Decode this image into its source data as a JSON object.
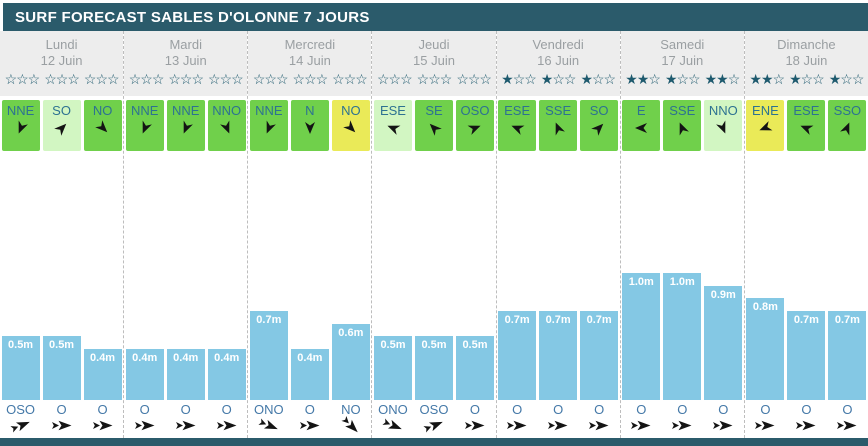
{
  "title": "SURF FORECAST SABLES D'OLONNE 7 JOURS",
  "stars_per_group": 3,
  "colors": {
    "header_bg": "#2b5b6b",
    "section_bg": "#ededed",
    "dashed": "#bdbdbd",
    "day_text": "#9a9fa2",
    "star": "#1e5a6e",
    "dir_text": "#2d7291",
    "swell_text": "#4579a8",
    "bar": "#84c8e4",
    "bar_text": "#ffffff",
    "wind_green": "#70d04b",
    "wind_lightgreen": "#d2f6c2",
    "wind_yellow": "#eaea58",
    "arrow": "#141414"
  },
  "days": [
    {
      "name": "Lundi",
      "date": "12 Juin",
      "ratings": [
        0,
        0,
        0
      ],
      "wind": [
        {
          "dir": "NNE",
          "color": "green",
          "to_deg": 202.5
        },
        {
          "dir": "SO",
          "color": "light",
          "to_deg": 45
        },
        {
          "dir": "NO",
          "color": "green",
          "to_deg": 135
        }
      ],
      "waves": [
        {
          "label": "0.5m",
          "value": 0.5
        },
        {
          "label": "0.5m",
          "value": 0.5
        },
        {
          "label": "0.4m",
          "value": 0.4
        }
      ],
      "swell": [
        {
          "dir": "OSO",
          "to_deg": 67.5
        },
        {
          "dir": "O",
          "to_deg": 90
        },
        {
          "dir": "O",
          "to_deg": 90
        }
      ]
    },
    {
      "name": "Mardi",
      "date": "13 Juin",
      "ratings": [
        0,
        0,
        0
      ],
      "wind": [
        {
          "dir": "NNE",
          "color": "green",
          "to_deg": 202.5
        },
        {
          "dir": "NNE",
          "color": "green",
          "to_deg": 202.5
        },
        {
          "dir": "NNO",
          "color": "green",
          "to_deg": 157.5
        }
      ],
      "waves": [
        {
          "label": "0.4m",
          "value": 0.4
        },
        {
          "label": "0.4m",
          "value": 0.4
        },
        {
          "label": "0.4m",
          "value": 0.4
        }
      ],
      "swell": [
        {
          "dir": "O",
          "to_deg": 90
        },
        {
          "dir": "O",
          "to_deg": 90
        },
        {
          "dir": "O",
          "to_deg": 90
        }
      ]
    },
    {
      "name": "Mercredi",
      "date": "14 Juin",
      "ratings": [
        0,
        0,
        0
      ],
      "wind": [
        {
          "dir": "NNE",
          "color": "green",
          "to_deg": 202.5
        },
        {
          "dir": "N",
          "color": "green",
          "to_deg": 180
        },
        {
          "dir": "NO",
          "color": "yellow",
          "to_deg": 135
        }
      ],
      "waves": [
        {
          "label": "0.7m",
          "value": 0.7
        },
        {
          "label": "0.4m",
          "value": 0.4
        },
        {
          "label": "0.6m",
          "value": 0.6
        }
      ],
      "swell": [
        {
          "dir": "ONO",
          "to_deg": 112.5
        },
        {
          "dir": "O",
          "to_deg": 90
        },
        {
          "dir": "NO",
          "to_deg": 135
        }
      ]
    },
    {
      "name": "Jeudi",
      "date": "15 Juin",
      "ratings": [
        0,
        0,
        0
      ],
      "wind": [
        {
          "dir": "ESE",
          "color": "light",
          "to_deg": 292.5
        },
        {
          "dir": "SE",
          "color": "green",
          "to_deg": 315
        },
        {
          "dir": "OSO",
          "color": "green",
          "to_deg": 67.5
        }
      ],
      "waves": [
        {
          "label": "0.5m",
          "value": 0.5
        },
        {
          "label": "0.5m",
          "value": 0.5
        },
        {
          "label": "0.5m",
          "value": 0.5
        }
      ],
      "swell": [
        {
          "dir": "ONO",
          "to_deg": 112.5
        },
        {
          "dir": "OSO",
          "to_deg": 67.5
        },
        {
          "dir": "O",
          "to_deg": 90
        }
      ]
    },
    {
      "name": "Vendredi",
      "date": "16 Juin",
      "ratings": [
        1,
        1,
        1
      ],
      "wind": [
        {
          "dir": "ESE",
          "color": "green",
          "to_deg": 292.5
        },
        {
          "dir": "SSE",
          "color": "green",
          "to_deg": 337.5
        },
        {
          "dir": "SO",
          "color": "green",
          "to_deg": 45
        }
      ],
      "waves": [
        {
          "label": "0.7m",
          "value": 0.7
        },
        {
          "label": "0.7m",
          "value": 0.7
        },
        {
          "label": "0.7m",
          "value": 0.7
        }
      ],
      "swell": [
        {
          "dir": "O",
          "to_deg": 90
        },
        {
          "dir": "O",
          "to_deg": 90
        },
        {
          "dir": "O",
          "to_deg": 90
        }
      ]
    },
    {
      "name": "Samedi",
      "date": "17 Juin",
      "ratings": [
        2,
        1,
        2
      ],
      "wind": [
        {
          "dir": "E",
          "color": "green",
          "to_deg": 270
        },
        {
          "dir": "SSE",
          "color": "green",
          "to_deg": 337.5
        },
        {
          "dir": "NNO",
          "color": "light",
          "to_deg": 157.5
        }
      ],
      "waves": [
        {
          "label": "1.0m",
          "value": 1.0
        },
        {
          "label": "1.0m",
          "value": 1.0
        },
        {
          "label": "0.9m",
          "value": 0.9
        }
      ],
      "swell": [
        {
          "dir": "O",
          "to_deg": 90
        },
        {
          "dir": "O",
          "to_deg": 90
        },
        {
          "dir": "O",
          "to_deg": 90
        }
      ]
    },
    {
      "name": "Dimanche",
      "date": "18 Juin",
      "ratings": [
        2,
        1,
        1
      ],
      "wind": [
        {
          "dir": "ENE",
          "color": "yellow",
          "to_deg": 247.5
        },
        {
          "dir": "ESE",
          "color": "green",
          "to_deg": 292.5
        },
        {
          "dir": "SSO",
          "color": "green",
          "to_deg": 22.5
        }
      ],
      "waves": [
        {
          "label": "0.8m",
          "value": 0.8
        },
        {
          "label": "0.7m",
          "value": 0.7
        },
        {
          "label": "0.7m",
          "value": 0.7
        }
      ],
      "swell": [
        {
          "dir": "O",
          "to_deg": 90
        },
        {
          "dir": "O",
          "to_deg": 90
        },
        {
          "dir": "O",
          "to_deg": 90
        }
      ]
    }
  ],
  "chart_data": {
    "type": "bar",
    "title": "SURF FORECAST SABLES D'OLONNE 7 JOURS",
    "categories": [
      "Lundi 12 Juin",
      "Mardi 13 Juin",
      "Mercredi 14 Juin",
      "Jeudi 15 Juin",
      "Vendredi 16 Juin",
      "Samedi 17 Juin",
      "Dimanche 18 Juin"
    ],
    "series": [
      {
        "name": "period-1",
        "values": [
          0.5,
          0.4,
          0.7,
          0.5,
          0.7,
          1.0,
          0.8
        ]
      },
      {
        "name": "period-2",
        "values": [
          0.5,
          0.4,
          0.4,
          0.5,
          0.7,
          1.0,
          0.7
        ]
      },
      {
        "name": "period-3",
        "values": [
          0.4,
          0.4,
          0.6,
          0.5,
          0.7,
          0.9,
          0.7
        ]
      }
    ],
    "unit": "m",
    "ylim": [
      0,
      1.95
    ],
    "bar_labels_visible": true,
    "grid": false,
    "legend": false
  }
}
